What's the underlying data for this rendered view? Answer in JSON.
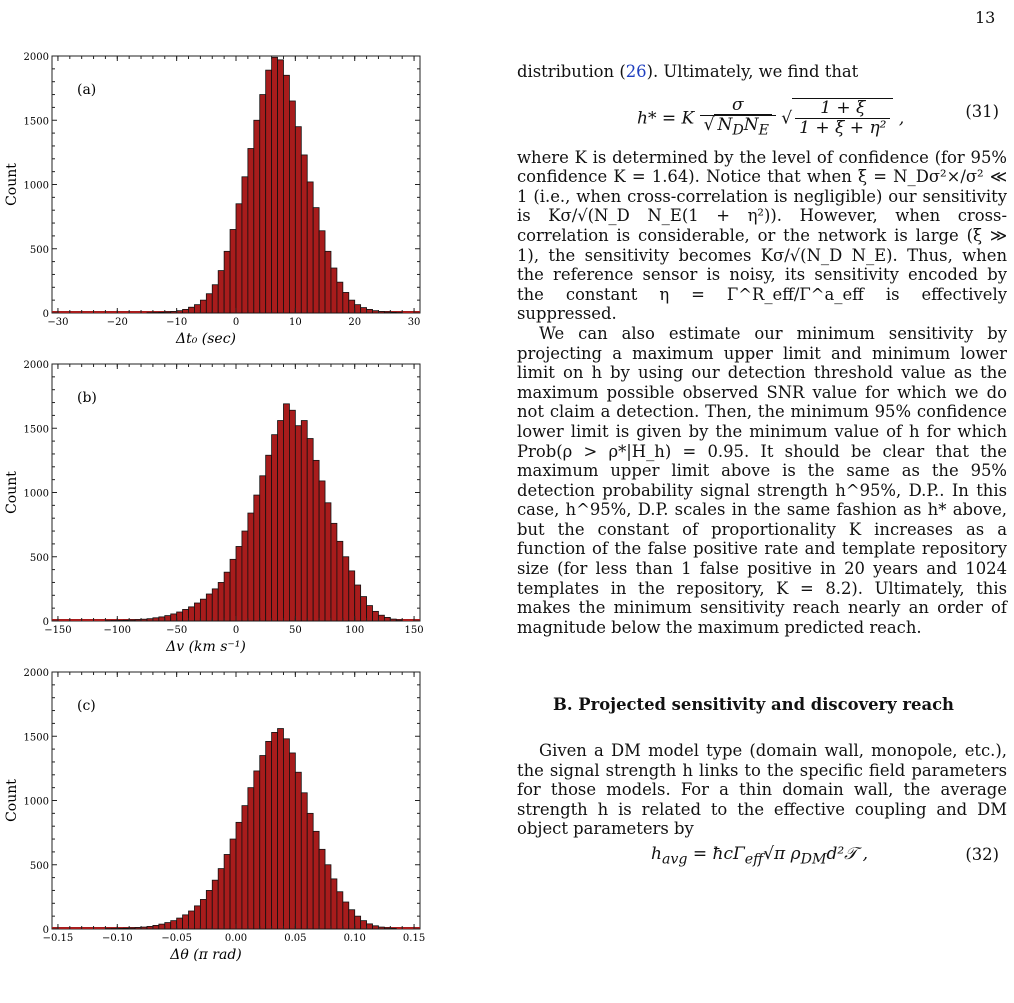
{
  "page_number": "13",
  "chart_data": [
    {
      "type": "bar",
      "panel_label": "(a)",
      "xlabel": "Δt₀ (sec)",
      "ylabel": "Count",
      "xlim": [
        -31,
        31
      ],
      "ylim": [
        0,
        2000
      ],
      "xticks": [
        "−30",
        "−20",
        "−10",
        "0",
        "10",
        "20",
        "30"
      ],
      "xtick_values": [
        -30,
        -20,
        -10,
        0,
        10,
        20,
        30
      ],
      "yticks": [
        "0",
        "500",
        "1000",
        "1500",
        "2000"
      ],
      "ytick_values": [
        0,
        500,
        1000,
        1500,
        2000
      ],
      "bin_start": -15,
      "bin_width": 1,
      "values": [
        2,
        3,
        5,
        8,
        12,
        18,
        28,
        45,
        65,
        100,
        150,
        220,
        330,
        480,
        650,
        850,
        1060,
        1280,
        1500,
        1700,
        1890,
        1990,
        1970,
        1850,
        1650,
        1450,
        1230,
        1020,
        820,
        640,
        480,
        350,
        240,
        160,
        100,
        65,
        42,
        28,
        18,
        12,
        8,
        5,
        3
      ],
      "color": "#a81c1c"
    },
    {
      "type": "bar",
      "panel_label": "(b)",
      "xlabel": "Δv (km s⁻¹)",
      "ylabel": "Count",
      "xlim": [
        -155,
        155
      ],
      "ylim": [
        0,
        2000
      ],
      "xticks": [
        "−150",
        "−100",
        "−50",
        "0",
        "50",
        "100",
        "150"
      ],
      "xtick_values": [
        -150,
        -100,
        -50,
        0,
        50,
        100,
        150
      ],
      "yticks": [
        "0",
        "500",
        "1000",
        "1500",
        "2000"
      ],
      "ytick_values": [
        0,
        500,
        1000,
        1500,
        2000
      ],
      "bin_start": -110,
      "bin_width": 5,
      "values": [
        2,
        3,
        4,
        6,
        8,
        10,
        14,
        18,
        25,
        32,
        42,
        55,
        70,
        90,
        110,
        140,
        170,
        210,
        250,
        300,
        380,
        480,
        580,
        700,
        840,
        980,
        1130,
        1290,
        1450,
        1560,
        1690,
        1640,
        1520,
        1560,
        1420,
        1250,
        1090,
        920,
        760,
        620,
        500,
        390,
        280,
        190,
        120,
        75,
        45,
        28,
        15,
        8
      ],
      "color": "#a81c1c"
    },
    {
      "type": "bar",
      "panel_label": "(c)",
      "xlabel": "Δθ (π rad)",
      "ylabel": "Count",
      "xlim": [
        -0.155,
        0.155
      ],
      "ylim": [
        0,
        2000
      ],
      "xticks": [
        "−0.15",
        "−0.10",
        "−0.05",
        "0.00",
        "0.05",
        "0.10",
        "0.15"
      ],
      "xtick_values": [
        -0.15,
        -0.1,
        -0.05,
        0.0,
        0.05,
        0.1,
        0.15
      ],
      "yticks": [
        "0",
        "500",
        "1000",
        "1500",
        "2000"
      ],
      "ytick_values": [
        0,
        500,
        1000,
        1500,
        2000
      ],
      "bin_start": -0.11,
      "bin_width": 0.005,
      "values": [
        2,
        3,
        4,
        6,
        8,
        11,
        15,
        20,
        28,
        38,
        50,
        65,
        85,
        110,
        140,
        180,
        230,
        300,
        380,
        470,
        580,
        700,
        830,
        960,
        1100,
        1230,
        1350,
        1460,
        1530,
        1560,
        1480,
        1370,
        1220,
        1060,
        900,
        760,
        620,
        500,
        390,
        290,
        210,
        150,
        100,
        65,
        40,
        25,
        15,
        8,
        4
      ],
      "color": "#a81c1c"
    }
  ],
  "text": {
    "intro": "distribution (26). Ultimately, we find that",
    "eq31_label": "(31)",
    "p1": "where K is determined by the level of confidence (for 95% confidence K = 1.64). Notice that when ξ = N_Dσ²×/σ² ≪ 1 (i.e., when cross-correlation is negligible) our sensitivity is Kσ/√(N_D N_E(1 + η²)). However, when cross-correlation is considerable, or the network is large (ξ ≫ 1), the sensitivity becomes Kσ/√(N_D N_E). Thus, when the reference sensor is noisy, its sensitivity encoded by the constant η = Γ^R_eff/Γ^a_eff is effectively suppressed.",
    "p2": "We can also estimate our minimum sensitivity by projecting a maximum upper limit and minimum lower limit on h by using our detection threshold value as the maximum possible observed SNR value for which we do not claim a detection. Then, the minimum 95% confidence lower limit is given by the minimum value of h for which Prob(ρ > ρ*|H_h) = 0.95. It should be clear that the maximum upper limit above is the same as the 95% detection probability signal strength h^95%, D.P.. In this case, h^95%, D.P. scales in the same fashion as h* above, but the constant of proportionality K increases as a function of the false positive rate and template repository size (for less than 1 false positive in 20 years and 1024 templates in the repository, K = 8.2). Ultimately, this makes the minimum sensitivity reach nearly an order of magnitude below the maximum predicted reach.",
    "section_title": "B.    Projected sensitivity and discovery reach",
    "p3": "Given a DM model type (domain wall, monopole, etc.), the signal strength h links to the specific field parameters for those models. For a thin domain wall, the average strength h is related to the effective coupling and DM object parameters by",
    "eq32_label": "(32)"
  }
}
